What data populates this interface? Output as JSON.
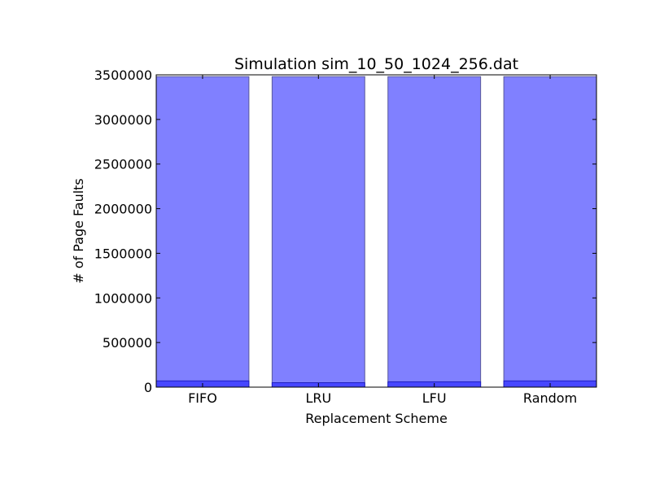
{
  "chart_data": {
    "type": "bar",
    "title": "Simulation sim_10_50_1024_256.dat",
    "xlabel": "Replacement Scheme",
    "ylabel": "# of Page Faults",
    "categories": [
      "FIFO",
      "LRU",
      "LFU",
      "Random"
    ],
    "series": [
      {
        "values": [
          3480000,
          3480000,
          3480000,
          3480000
        ],
        "color": "#8080ff"
      },
      {
        "values": [
          70000,
          50000,
          60000,
          70000
        ],
        "color": "#4040ff"
      }
    ],
    "ylim": [
      0,
      3500000
    ],
    "yticks": [
      "0",
      "500000",
      "1000000",
      "1500000",
      "2000000",
      "2500000",
      "3000000",
      "3500000"
    ],
    "grid": false
  }
}
